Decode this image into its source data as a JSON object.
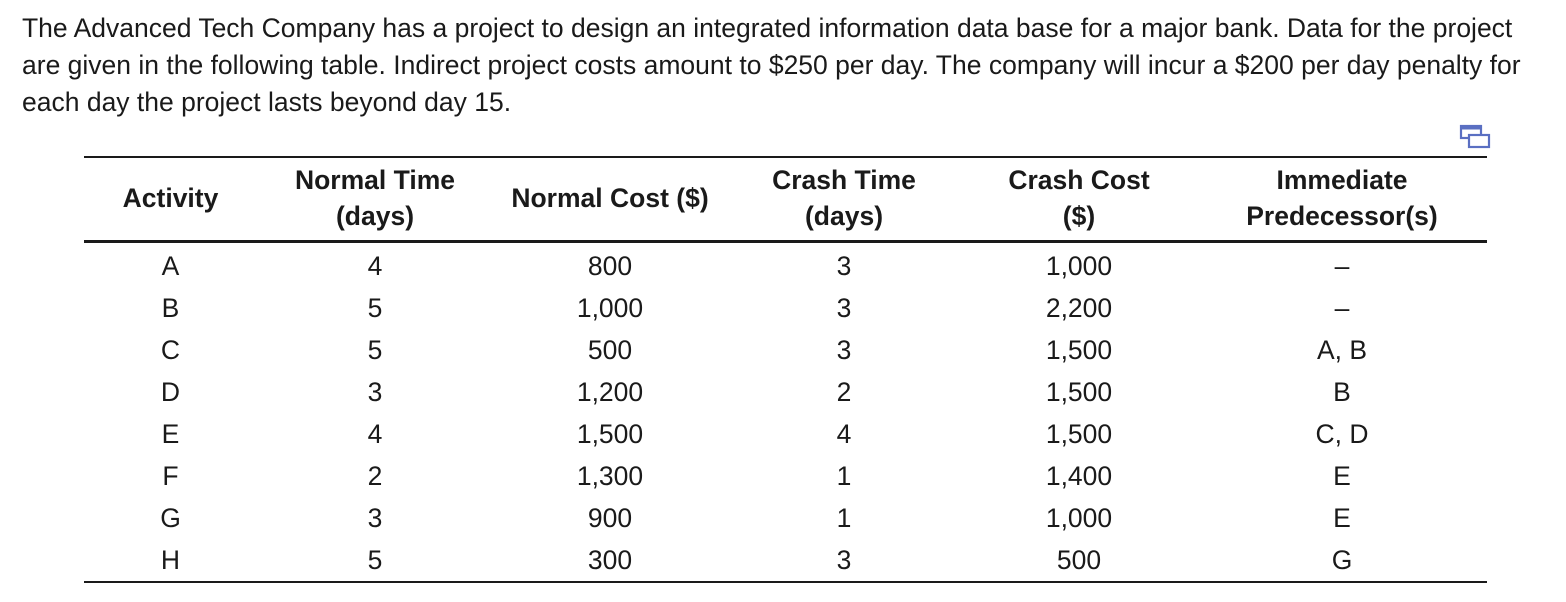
{
  "problem": {
    "text": "The Advanced Tech Company has a project to design an integrated information data base for a major bank. Data for the project are given in the following table. Indirect project costs amount to $250 per day. The company will incur a $200 per day penalty for each day the project lasts beyond day 15."
  },
  "copy_icon": "copy-table-icon",
  "table": {
    "headers": {
      "activity": "Activity",
      "normal_time_l1": "Normal Time",
      "normal_time_l2": "(days)",
      "normal_cost": "Normal Cost ($)",
      "crash_time_l1": "Crash Time",
      "crash_time_l2": "(days)",
      "crash_cost_l1": "Crash Cost",
      "crash_cost_l2": "($)",
      "pred_l1": "Immediate",
      "pred_l2": "Predecessor(s)"
    },
    "rows": [
      {
        "activity": "A",
        "normal_time": "4",
        "normal_cost": "800",
        "crash_time": "3",
        "crash_cost": "1,000",
        "pred": "–"
      },
      {
        "activity": "B",
        "normal_time": "5",
        "normal_cost": "1,000",
        "crash_time": "3",
        "crash_cost": "2,200",
        "pred": "–"
      },
      {
        "activity": "C",
        "normal_time": "5",
        "normal_cost": "500",
        "crash_time": "3",
        "crash_cost": "1,500",
        "pred": "A, B"
      },
      {
        "activity": "D",
        "normal_time": "3",
        "normal_cost": "1,200",
        "crash_time": "2",
        "crash_cost": "1,500",
        "pred": "B"
      },
      {
        "activity": "E",
        "normal_time": "4",
        "normal_cost": "1,500",
        "crash_time": "4",
        "crash_cost": "1,500",
        "pred": "C, D"
      },
      {
        "activity": "F",
        "normal_time": "2",
        "normal_cost": "1,300",
        "crash_time": "1",
        "crash_cost": "1,400",
        "pred": "E"
      },
      {
        "activity": "G",
        "normal_time": "3",
        "normal_cost": "900",
        "crash_time": "1",
        "crash_cost": "1,000",
        "pred": "E"
      },
      {
        "activity": "H",
        "normal_time": "5",
        "normal_cost": "300",
        "crash_time": "3",
        "crash_cost": "500",
        "pred": "G"
      }
    ]
  }
}
